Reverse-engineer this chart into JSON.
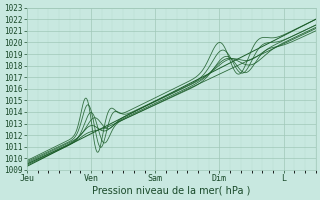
{
  "xlabel": "Pression niveau de la mer( hPa )",
  "ylim": [
    1009,
    1023
  ],
  "yticks": [
    1009,
    1010,
    1011,
    1012,
    1013,
    1014,
    1015,
    1016,
    1017,
    1018,
    1019,
    1020,
    1021,
    1022,
    1023
  ],
  "xtick_labels": [
    "Jeu",
    "Ven",
    "Sam",
    "Dim",
    "L"
  ],
  "xtick_positions": [
    0,
    1,
    2,
    3,
    4
  ],
  "x_total": 4.5,
  "bg_color": "#c8e8e0",
  "grid_major_color": "#a0c8b8",
  "grid_minor_color": "#b8dcd0",
  "line_color": "#1a5c28",
  "text_color": "#1a4a2a",
  "ytick_fontsize": 5.5,
  "xtick_fontsize": 6.0,
  "xlabel_fontsize": 7.0
}
